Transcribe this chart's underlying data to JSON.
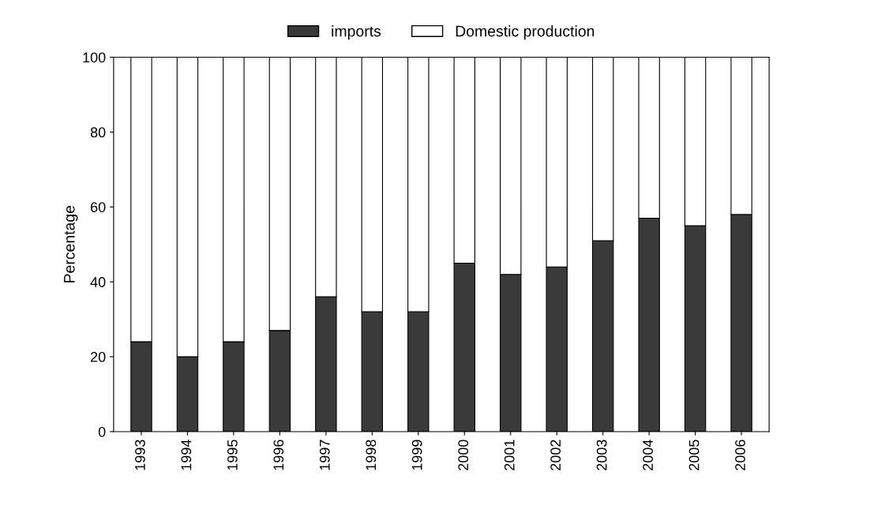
{
  "chart_data": {
    "type": "bar",
    "stacked": true,
    "ylabel": "Percentage",
    "categories": [
      "1993",
      "1994",
      "1995",
      "1996",
      "1997",
      "1998",
      "1999",
      "2000",
      "2001",
      "2002",
      "2003",
      "2004",
      "2005",
      "2006"
    ],
    "series": [
      {
        "name": "imports",
        "color": "#3a3a3a",
        "values": [
          24,
          20,
          24,
          27,
          36,
          32,
          32,
          45,
          42,
          44,
          51,
          57,
          55,
          58
        ]
      },
      {
        "name": "Domestic production",
        "color": "#ffffff",
        "values": [
          76,
          80,
          76,
          73,
          64,
          68,
          68,
          55,
          58,
          56,
          49,
          43,
          45,
          42
        ]
      }
    ],
    "ylim": [
      0,
      100
    ],
    "yticks": [
      0,
      20,
      40,
      60,
      80,
      100
    ],
    "grid": false,
    "legend": "top"
  }
}
